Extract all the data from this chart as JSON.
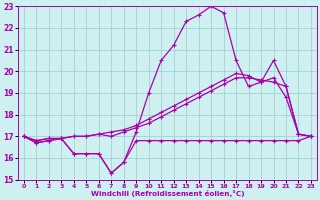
{
  "xlabel": "Windchill (Refroidissement éolien,°C)",
  "background_color": "#cef0f0",
  "line_color": "#aa00aa",
  "grid_color": "#99cccc",
  "xlim": [
    -0.5,
    23.5
  ],
  "ylim": [
    15,
    23
  ],
  "yticks": [
    15,
    16,
    17,
    18,
    19,
    20,
    21,
    22,
    23
  ],
  "xticks": [
    0,
    1,
    2,
    3,
    4,
    5,
    6,
    7,
    8,
    9,
    10,
    11,
    12,
    13,
    14,
    15,
    16,
    17,
    18,
    19,
    20,
    21,
    22,
    23
  ],
  "curve_wavy_x": [
    0,
    1,
    2,
    3,
    4,
    5,
    6,
    7,
    8,
    9,
    10,
    11,
    12,
    13,
    14,
    15,
    16,
    17,
    18,
    19,
    20,
    21,
    22,
    23
  ],
  "curve_wavy_y": [
    17.0,
    16.7,
    16.8,
    16.9,
    16.2,
    16.2,
    16.2,
    15.3,
    15.8,
    17.2,
    19.0,
    20.5,
    21.2,
    22.3,
    22.6,
    23.0,
    22.7,
    20.5,
    19.3,
    19.5,
    19.7,
    18.8,
    17.1,
    17.0
  ],
  "curve_lin1_x": [
    0,
    1,
    2,
    3,
    4,
    5,
    6,
    7,
    8,
    9,
    10,
    11,
    12,
    13,
    14,
    15,
    16,
    17,
    18,
    19,
    20,
    21,
    22,
    23
  ],
  "curve_lin1_y": [
    17.0,
    16.8,
    16.9,
    16.9,
    17.0,
    17.0,
    17.1,
    17.0,
    17.2,
    17.4,
    17.6,
    17.9,
    18.2,
    18.5,
    18.8,
    19.1,
    19.4,
    19.7,
    19.7,
    19.6,
    19.5,
    19.3,
    17.1,
    17.0
  ],
  "curve_lin2_x": [
    0,
    1,
    2,
    3,
    4,
    5,
    6,
    7,
    8,
    9,
    10,
    11,
    12,
    13,
    14,
    15,
    16,
    17,
    18,
    19,
    20,
    21,
    22,
    23
  ],
  "curve_lin2_y": [
    17.0,
    16.8,
    16.9,
    16.9,
    17.0,
    17.0,
    17.1,
    17.2,
    17.3,
    17.5,
    17.8,
    18.1,
    18.4,
    18.7,
    19.0,
    19.3,
    19.6,
    19.9,
    19.8,
    19.5,
    20.5,
    19.3,
    17.1,
    17.0
  ],
  "curve_flat_x": [
    0,
    1,
    2,
    3,
    4,
    5,
    6,
    7,
    8,
    9,
    10,
    11,
    12,
    13,
    14,
    15,
    16,
    17,
    18,
    19,
    20,
    21,
    22,
    23
  ],
  "curve_flat_y": [
    17.0,
    16.7,
    16.8,
    16.9,
    16.2,
    16.2,
    16.2,
    15.3,
    15.8,
    16.8,
    16.8,
    16.8,
    16.8,
    16.8,
    16.8,
    16.8,
    16.8,
    16.8,
    16.8,
    16.8,
    16.8,
    16.8,
    16.8,
    17.0
  ]
}
